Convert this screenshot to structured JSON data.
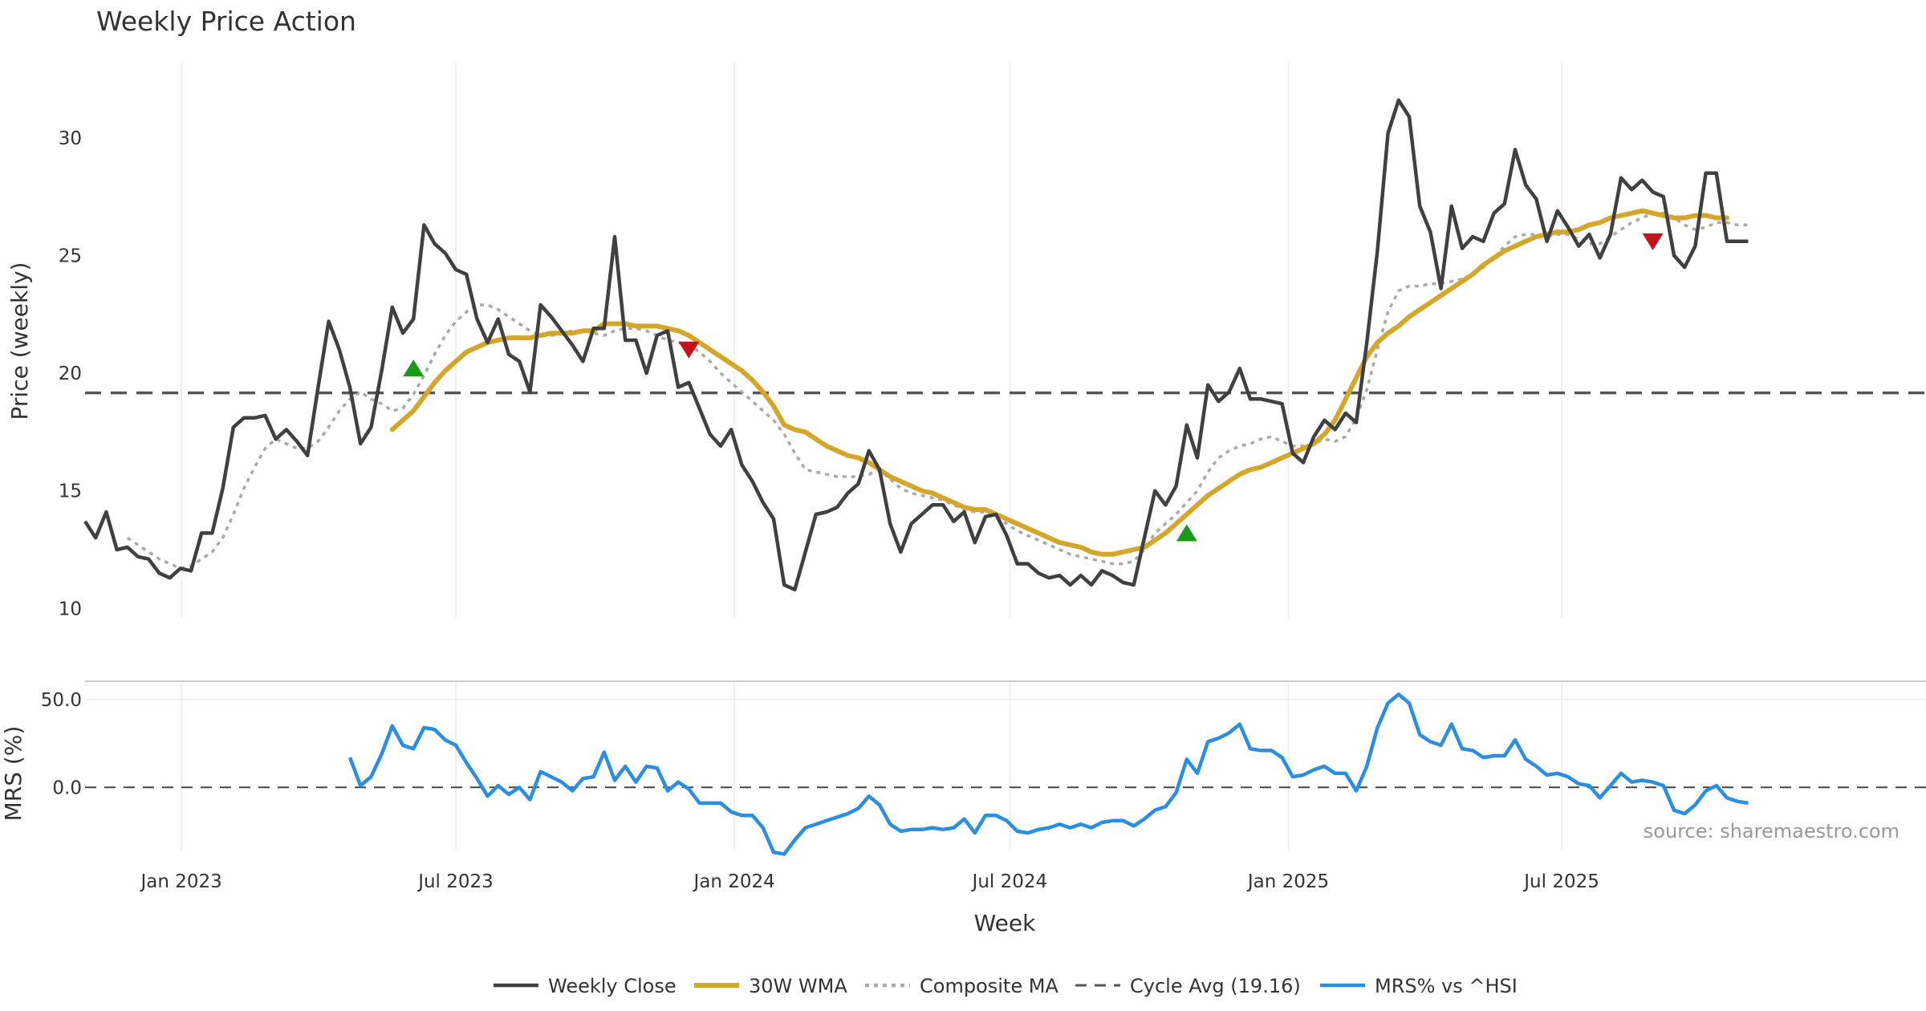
{
  "colors": {
    "close": "#404040",
    "wma": "#d4a62a",
    "composite": "#aaaaaa",
    "cycle": "#555555",
    "mrs": "#2b8ee0",
    "buy": "#1a9a1a",
    "sell": "#c0151b",
    "grid": "#ececec",
    "separator": "#cccccc"
  },
  "chart_data": [
    {
      "type": "line",
      "title": "Weekly Price Action",
      "ylabel": "Price (weekly)",
      "ylim": [
        9.6,
        33.2
      ],
      "yticks": [
        10,
        15,
        20,
        25,
        30
      ],
      "ytick_labels": [
        "10",
        "15",
        "20",
        "25",
        "30"
      ],
      "x_start": "2022-10-31",
      "x_step_days": 7,
      "grid": "vertical",
      "cycle_avg": 19.16,
      "series": [
        {
          "name": "Weekly Close",
          "values": [
            13.7,
            13.0,
            14.1,
            12.5,
            12.6,
            12.2,
            12.1,
            11.5,
            11.3,
            11.7,
            11.6,
            13.2,
            13.2,
            15.1,
            17.7,
            18.1,
            18.1,
            18.2,
            17.2,
            17.6,
            17.1,
            16.5,
            19.4,
            22.2,
            21.0,
            19.4,
            17.0,
            17.7,
            20.1,
            22.8,
            21.7,
            22.3,
            26.3,
            25.5,
            25.1,
            24.4,
            24.2,
            22.3,
            21.3,
            22.3,
            20.8,
            20.5,
            19.2,
            22.9,
            22.4,
            21.8,
            21.2,
            20.5,
            21.9,
            21.9,
            25.8,
            21.4,
            21.4,
            20.0,
            21.6,
            21.8,
            19.4,
            19.6,
            18.5,
            17.4,
            16.9,
            17.6,
            16.1,
            15.4,
            14.5,
            13.8,
            11.0,
            10.8,
            12.4,
            14.0,
            14.1,
            14.3,
            14.9,
            15.3,
            16.7,
            15.9,
            13.6,
            12.4,
            13.6,
            14.0,
            14.4,
            14.4,
            13.7,
            14.1,
            12.8,
            13.9,
            14.0,
            13.1,
            11.9,
            11.9,
            11.5,
            11.3,
            11.4,
            11.0,
            11.4,
            11.0,
            11.6,
            11.4,
            11.1,
            11.0,
            13.0,
            15.0,
            14.4,
            15.2,
            17.8,
            16.4,
            19.5,
            18.8,
            19.2,
            20.2,
            18.9,
            18.9,
            18.8,
            18.7,
            16.6,
            16.2,
            17.3,
            18.0,
            17.6,
            18.3,
            17.9,
            21.3,
            25.2,
            30.2,
            31.6,
            30.9,
            27.1,
            26.0,
            23.6,
            27.1,
            25.3,
            25.8,
            25.6,
            26.8,
            27.2,
            29.5,
            28.0,
            27.4,
            25.6,
            26.9,
            26.2,
            25.4,
            25.9,
            24.9,
            25.9,
            28.3,
            27.8,
            28.2,
            27.7,
            27.5,
            25.0,
            24.5,
            25.4,
            28.5,
            28.5,
            25.6,
            25.6,
            25.6
          ]
        },
        {
          "name": "30W WMA",
          "start_index": 29,
          "values": [
            17.6,
            18.0,
            18.4,
            19.0,
            19.6,
            20.1,
            20.5,
            20.9,
            21.1,
            21.3,
            21.4,
            21.5,
            21.5,
            21.5,
            21.6,
            21.7,
            21.7,
            21.7,
            21.8,
            21.8,
            22.1,
            22.1,
            22.1,
            22.0,
            22.0,
            22.0,
            21.9,
            21.8,
            21.6,
            21.3,
            21.0,
            20.7,
            20.4,
            20.1,
            19.7,
            19.2,
            18.6,
            17.8,
            17.6,
            17.5,
            17.2,
            16.9,
            16.7,
            16.5,
            16.4,
            16.2,
            15.9,
            15.6,
            15.4,
            15.2,
            15.0,
            14.9,
            14.7,
            14.5,
            14.3,
            14.2,
            14.2,
            14.0,
            13.8,
            13.6,
            13.4,
            13.2,
            13.0,
            12.8,
            12.7,
            12.6,
            12.4,
            12.3,
            12.3,
            12.4,
            12.5,
            12.6,
            12.9,
            13.2,
            13.6,
            14.0,
            14.4,
            14.8,
            15.1,
            15.4,
            15.7,
            15.9,
            16.0,
            16.2,
            16.4,
            16.6,
            16.8,
            17.0,
            17.4,
            18.0,
            18.9,
            19.8,
            20.7,
            21.3,
            21.7,
            22.0,
            22.4,
            22.7,
            23.0,
            23.3,
            23.6,
            23.9,
            24.2,
            24.6,
            24.9,
            25.2,
            25.4,
            25.6,
            25.8,
            25.9,
            26.0,
            26.0,
            26.1,
            26.3,
            26.4,
            26.6,
            26.7,
            26.8,
            26.9,
            26.8,
            26.7,
            26.6,
            26.6,
            26.7,
            26.7,
            26.6,
            26.6
          ]
        },
        {
          "name": "Composite MA",
          "start_index": 4,
          "values": [
            13.0,
            12.7,
            12.4,
            12.1,
            11.9,
            11.7,
            11.8,
            12.1,
            12.4,
            13.0,
            14.0,
            15.1,
            16.0,
            16.8,
            17.2,
            17.0,
            16.8,
            16.8,
            17.1,
            17.7,
            18.4,
            18.9,
            19.2,
            18.9,
            18.7,
            18.4,
            18.5,
            19.1,
            19.9,
            20.8,
            21.6,
            22.2,
            22.6,
            22.9,
            22.9,
            22.7,
            22.4,
            22.1,
            21.8,
            21.6,
            21.6,
            21.7,
            21.8,
            21.8,
            21.7,
            21.6,
            21.8,
            21.9,
            21.9,
            21.8,
            21.6,
            21.4,
            21.3,
            21.2,
            20.9,
            20.5,
            20.0,
            19.6,
            19.2,
            18.8,
            18.4,
            18.0,
            17.4,
            16.6,
            15.9,
            15.8,
            15.7,
            15.6,
            15.6,
            15.6,
            15.7,
            15.9,
            15.5,
            15.1,
            14.9,
            14.8,
            14.7,
            14.6,
            14.4,
            14.2,
            14.1,
            14.1,
            13.9,
            13.6,
            13.3,
            13.1,
            12.9,
            12.7,
            12.5,
            12.3,
            12.2,
            12.1,
            12.0,
            11.9,
            11.9,
            12.0,
            12.5,
            13.2,
            13.6,
            14.0,
            14.5,
            15.0,
            15.8,
            16.4,
            16.7,
            16.9,
            17.0,
            17.2,
            17.3,
            17.1,
            16.9,
            16.9,
            17.0,
            17.2,
            17.1,
            17.3,
            18.1,
            19.3,
            21.0,
            22.6,
            23.5,
            23.7,
            23.7,
            23.8,
            23.8,
            23.9,
            24.0,
            24.2,
            24.5,
            24.9,
            25.4,
            25.8,
            25.9,
            25.9,
            25.8,
            25.9,
            25.9,
            25.7,
            25.5,
            25.5,
            25.8,
            26.1,
            26.4,
            26.6,
            26.8,
            26.8,
            26.6,
            26.3,
            26.1,
            26.2,
            26.4,
            26.4,
            26.3,
            26.3
          ]
        }
      ],
      "signals": [
        {
          "type": "buy",
          "index": 31,
          "value": 20.2
        },
        {
          "type": "sell",
          "index": 57,
          "value": 21.0
        },
        {
          "type": "buy",
          "index": 104,
          "value": 13.2
        },
        {
          "type": "sell",
          "index": 148,
          "value": 25.6
        }
      ]
    },
    {
      "type": "line",
      "ylabel": "MRS (%)",
      "ylim": [
        -36,
        60
      ],
      "yticks": [
        0,
        50
      ],
      "ytick_labels": [
        "0.0",
        "50.0"
      ],
      "xlabel": "Week",
      "x_ticks": [
        "Jan 2023",
        "Jul 2023",
        "Jan 2024",
        "Jul 2024",
        "Jan 2025",
        "Jul 2025"
      ],
      "x_tick_indices": [
        9.1,
        35.0,
        61.3,
        87.3,
        113.6,
        139.4
      ],
      "zero_line": 0,
      "series": [
        {
          "name": "MRS% vs ^HSI",
          "start_index": 25,
          "values": [
            17,
            1,
            6,
            19,
            35,
            24,
            22,
            34,
            33,
            27,
            24,
            14,
            5,
            -5,
            1,
            -4,
            0,
            -7,
            9,
            6,
            3,
            -2,
            5,
            6,
            20,
            4,
            12,
            3,
            12,
            11,
            -2,
            3,
            -1,
            -9,
            -9,
            -9,
            -14,
            -16,
            -16,
            -23,
            -37,
            -38,
            -30,
            -23,
            -21,
            -19,
            -17,
            -15,
            -12,
            -5,
            -10,
            -21,
            -25,
            -24,
            -24,
            -23,
            -24,
            -23,
            -18,
            -26,
            -16,
            -16,
            -19,
            -25,
            -26,
            -24,
            -23,
            -21,
            -23,
            -21,
            -23,
            -20,
            -19,
            -19,
            -22,
            -18,
            -13,
            -11,
            -3,
            16,
            8,
            26,
            28,
            31,
            36,
            22,
            21,
            21,
            17,
            6,
            7,
            10,
            12,
            8,
            8,
            -2,
            12,
            34,
            48,
            53,
            48,
            30,
            26,
            24,
            36,
            22,
            21,
            17,
            18,
            18,
            27,
            16,
            12,
            7,
            8,
            6,
            2,
            1,
            -6,
            1,
            8,
            3,
            4,
            3,
            1,
            -13,
            -15,
            -10,
            -2,
            1,
            -6,
            -8,
            -9
          ]
        }
      ],
      "source": "source: sharemaestro.com"
    }
  ],
  "legend": {
    "placement": "bottom-center",
    "items": [
      {
        "key": "close",
        "label": "Weekly Close",
        "style": "solid"
      },
      {
        "key": "wma",
        "label": "30W WMA",
        "style": "solid"
      },
      {
        "key": "composite",
        "label": "Composite MA",
        "style": "dotted"
      },
      {
        "key": "cycle",
        "label": "Cycle Avg (19.16)",
        "style": "dashed"
      },
      {
        "key": "mrs",
        "label": "MRS% vs ^HSI",
        "style": "solid"
      }
    ]
  }
}
